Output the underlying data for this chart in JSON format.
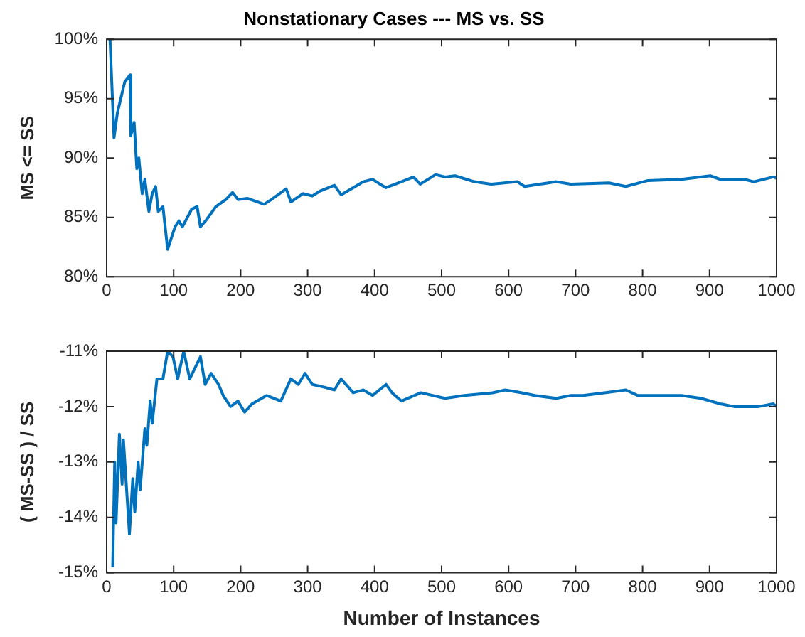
{
  "chart_data": [
    {
      "type": "line",
      "title": "Nonstationary Cases --- MS vs. SS",
      "ylabel": "MS <= SS",
      "xlim": [
        0,
        1000
      ],
      "xticks": [
        0,
        100,
        200,
        300,
        400,
        500,
        600,
        700,
        800,
        900,
        1000
      ],
      "ylim": [
        80,
        100
      ],
      "yticks": [
        {
          "value": 80,
          "label": "80%"
        },
        {
          "value": 85,
          "label": "85%"
        },
        {
          "value": 90,
          "label": "90%"
        },
        {
          "value": 95,
          "label": "95%"
        },
        {
          "value": 100,
          "label": "100%"
        }
      ],
      "grid": false,
      "legend": false,
      "marker": "none",
      "line_style": "solid",
      "series": [
        {
          "color": "#0072bd",
          "x": [
            5,
            11,
            16,
            27,
            35,
            36,
            41,
            45,
            48,
            53,
            57,
            63,
            68,
            73,
            77,
            84,
            91,
            102,
            108,
            113,
            127,
            135,
            140,
            149,
            163,
            178,
            188,
            196,
            210,
            235,
            246,
            268,
            275,
            293,
            307,
            318,
            340,
            350,
            383,
            397,
            408,
            417,
            440,
            458,
            468,
            491,
            505,
            520,
            549,
            574,
            613,
            624,
            671,
            693,
            750,
            775,
            808,
            858,
            901,
            916,
            952,
            966,
            995,
            1000
          ],
          "values": [
            100,
            91.7,
            93.8,
            96.4,
            97.0,
            91.9,
            93.0,
            89.1,
            90.0,
            87.0,
            88.2,
            85.5,
            87.0,
            87.6,
            85.5,
            85.9,
            82.3,
            84.2,
            84.7,
            84.2,
            85.7,
            85.9,
            84.2,
            84.8,
            85.9,
            86.5,
            87.1,
            86.5,
            86.6,
            86.1,
            86.5,
            87.4,
            86.3,
            87.0,
            86.8,
            87.2,
            87.7,
            86.9,
            88.0,
            88.2,
            87.8,
            87.5,
            88.0,
            88.4,
            87.8,
            88.6,
            88.4,
            88.5,
            88.0,
            87.8,
            88.0,
            87.6,
            88.0,
            87.8,
            87.9,
            87.6,
            88.1,
            88.2,
            88.5,
            88.2,
            88.2,
            88.0,
            88.4,
            88.3
          ]
        }
      ]
    },
    {
      "type": "line",
      "xlabel": "Number of Instances",
      "ylabel": "( MS-SS ) / SS",
      "xlim": [
        0,
        1000
      ],
      "xticks": [
        0,
        100,
        200,
        300,
        400,
        500,
        600,
        700,
        800,
        900,
        1000
      ],
      "ylim": [
        -15,
        -11
      ],
      "yticks": [
        {
          "value": -15,
          "label": "-15%"
        },
        {
          "value": -14,
          "label": "-14%"
        },
        {
          "value": -13,
          "label": "-13%"
        },
        {
          "value": -12,
          "label": "-12%"
        },
        {
          "value": -11,
          "label": "-11%"
        }
      ],
      "grid": false,
      "legend": false,
      "marker": "none",
      "line_style": "solid",
      "series": [
        {
          "color": "#0072bd",
          "x": [
            9,
            12,
            14,
            19,
            23,
            25,
            34,
            39,
            42,
            47,
            50,
            57,
            60,
            65,
            68,
            75,
            84,
            91,
            99,
            106,
            115,
            124,
            140,
            147,
            156,
            167,
            174,
            185,
            196,
            206,
            217,
            239,
            260,
            275,
            286,
            296,
            307,
            325,
            340,
            350,
            368,
            383,
            397,
            417,
            426,
            440,
            469,
            505,
            534,
            576,
            595,
            620,
            639,
            671,
            693,
            711,
            743,
            775,
            793,
            829,
            858,
            887,
            916,
            937,
            973,
            995,
            1000
          ],
          "values": [
            -14.9,
            -13.0,
            -14.1,
            -12.5,
            -13.4,
            -12.6,
            -14.3,
            -13.3,
            -13.9,
            -13.0,
            -13.5,
            -12.4,
            -12.7,
            -11.9,
            -12.3,
            -11.5,
            -11.5,
            -11.0,
            -11.1,
            -11.5,
            -11.0,
            -11.5,
            -11.1,
            -11.6,
            -11.4,
            -11.6,
            -11.8,
            -12.0,
            -11.9,
            -12.1,
            -11.95,
            -11.8,
            -11.9,
            -11.5,
            -11.6,
            -11.4,
            -11.6,
            -11.65,
            -11.7,
            -11.5,
            -11.75,
            -11.7,
            -11.8,
            -11.6,
            -11.75,
            -11.9,
            -11.75,
            -11.85,
            -11.8,
            -11.75,
            -11.7,
            -11.75,
            -11.8,
            -11.85,
            -11.8,
            -11.8,
            -11.75,
            -11.7,
            -11.8,
            -11.8,
            -11.8,
            -11.85,
            -11.95,
            -12.0,
            -12.0,
            -11.95,
            -12.0
          ]
        }
      ]
    }
  ]
}
